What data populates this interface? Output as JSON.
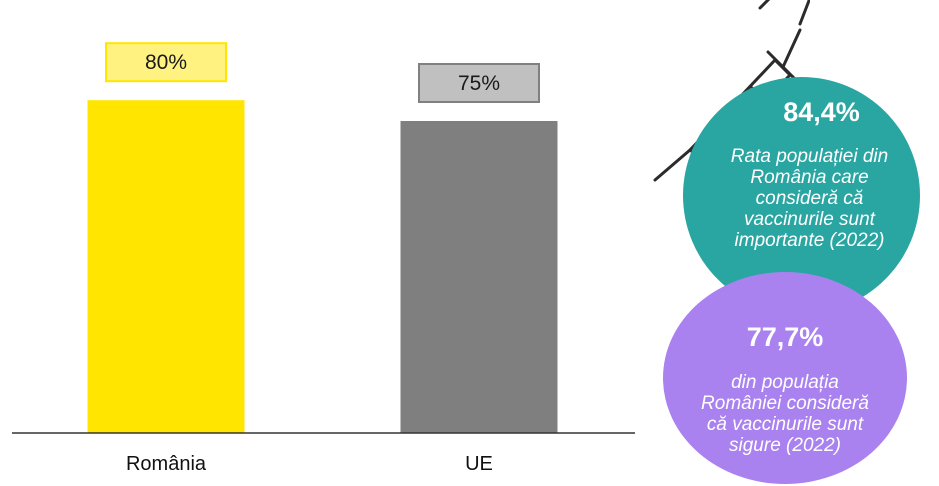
{
  "chart_data": {
    "type": "bar",
    "categories": [
      "România",
      "UE"
    ],
    "values": [
      80,
      75
    ],
    "value_labels": [
      "80%",
      "75%"
    ],
    "title": "",
    "xlabel": "",
    "ylabel": "",
    "ylim": [
      0,
      100
    ],
    "grid": false,
    "legend": "none",
    "colors": {
      "bars": [
        "#ffe500",
        "#7f7f7f"
      ],
      "label_boxes_fill": [
        "#fff280",
        "#c0c0c0"
      ],
      "label_boxes_border": [
        "#ffe500",
        "#808080"
      ]
    }
  },
  "stats": [
    {
      "value": "84,4%",
      "caption_lines": [
        "Rata populației din",
        "România care",
        "consideră că",
        "vaccinurile sunt",
        "importante (2022)"
      ],
      "color": "#2aa6a2"
    },
    {
      "value": "77,7%",
      "caption_lines": [
        "din populația",
        "României consideră",
        "că vaccinurile sunt",
        "sigure (2022)"
      ],
      "color": "#a982ef"
    }
  ],
  "decoration": {
    "icon": "syringe-icon"
  }
}
